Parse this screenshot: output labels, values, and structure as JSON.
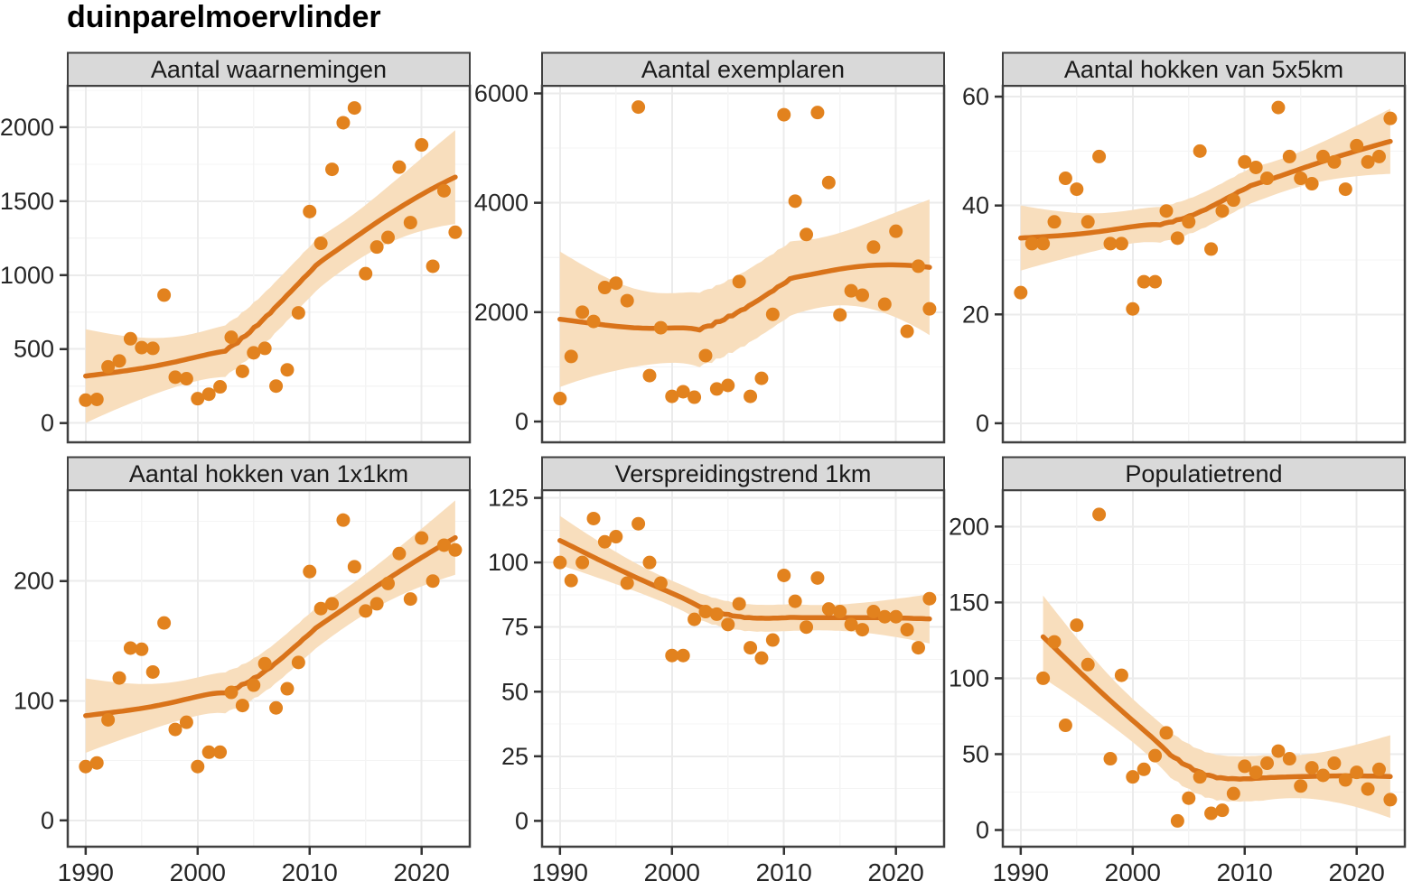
{
  "figure": {
    "title": "duinparelmoervlinder"
  },
  "colors": {
    "point": "#E2821E",
    "trend_line": "#D9731A",
    "confidence_band": "#F8DEBD",
    "strip_bg": "#D9D9D9",
    "strip_text": "#1A1A1A",
    "panel_border": "#404040",
    "grid_major": "#EBEBEB",
    "grid_minor": "#F4F4F4",
    "axis_text": "#262626",
    "tick_mark": "#333333"
  },
  "x_axis": {
    "tick_labels": [
      "1990",
      "2000",
      "2010",
      "2020"
    ]
  },
  "chart_data": [
    {
      "type": "scatter",
      "smoother": "loess",
      "band": "95% CI",
      "title": "Aantal waarnemingen",
      "x": [
        1990,
        1991,
        1992,
        1993,
        1994,
        1995,
        1996,
        1997,
        1998,
        1999,
        2000,
        2001,
        2002,
        2003,
        2004,
        2005,
        2006,
        2007,
        2008,
        2009,
        2010,
        2011,
        2012,
        2013,
        2014,
        2015,
        2016,
        2017,
        2018,
        2019,
        2020,
        2021,
        2022,
        2023
      ],
      "y": [
        155,
        160,
        380,
        420,
        570,
        510,
        505,
        865,
        310,
        300,
        165,
        195,
        245,
        580,
        350,
        475,
        505,
        250,
        360,
        745,
        1430,
        1215,
        1715,
        2030,
        2130,
        1010,
        1190,
        1255,
        1730,
        1355,
        1880,
        1060,
        1570,
        1290
      ],
      "y_ticks": [
        0,
        500,
        1000,
        1500,
        2000
      ],
      "ylim": [
        -130,
        2280
      ],
      "x_ticks": [
        1990,
        2000,
        2010,
        2020
      ],
      "xlim": [
        1988.4,
        2024.3
      ],
      "grid": true,
      "legend": false
    },
    {
      "type": "scatter",
      "smoother": "loess",
      "band": "95% CI",
      "title": "Aantal exemplaren",
      "x": [
        1990,
        1991,
        1992,
        1993,
        1994,
        1995,
        1996,
        1997,
        1998,
        1999,
        2000,
        2001,
        2002,
        2003,
        2004,
        2005,
        2006,
        2007,
        2008,
        2009,
        2010,
        2011,
        2012,
        2013,
        2014,
        2015,
        2016,
        2017,
        2018,
        2019,
        2020,
        2021,
        2022,
        2023
      ],
      "y": [
        420,
        1190,
        2000,
        1830,
        2450,
        2530,
        2210,
        5750,
        840,
        1715,
        460,
        545,
        445,
        1205,
        595,
        660,
        2560,
        460,
        790,
        1960,
        5610,
        4030,
        3420,
        5650,
        4370,
        1950,
        2390,
        2310,
        3190,
        2145,
        3480,
        1650,
        2840,
        2060
      ],
      "y_ticks": [
        0,
        2000,
        4000,
        6000
      ],
      "ylim": [
        -380,
        6140
      ],
      "x_ticks": [
        1990,
        2000,
        2010,
        2020
      ],
      "xlim": [
        1988.4,
        2024.3
      ],
      "grid": true,
      "legend": false
    },
    {
      "type": "scatter",
      "smoother": "loess",
      "band": "95% CI",
      "title": "Aantal hokken van 5x5km",
      "x": [
        1990,
        1991,
        1992,
        1993,
        1994,
        1995,
        1996,
        1997,
        1998,
        1999,
        2000,
        2001,
        2002,
        2003,
        2004,
        2005,
        2006,
        2007,
        2008,
        2009,
        2010,
        2011,
        2012,
        2013,
        2014,
        2015,
        2016,
        2017,
        2018,
        2019,
        2020,
        2021,
        2022,
        2023
      ],
      "y": [
        24,
        33,
        33,
        37,
        45,
        43,
        37,
        49,
        33,
        33,
        21,
        26,
        26,
        39,
        34,
        37,
        50,
        32,
        39,
        41,
        48,
        47,
        45,
        58,
        49,
        45,
        44,
        49,
        48,
        43,
        51,
        48,
        49,
        56
      ],
      "y_ticks": [
        0,
        20,
        40,
        60
      ],
      "ylim": [
        -3.5,
        62
      ],
      "x_ticks": [
        1990,
        2000,
        2010,
        2020
      ],
      "xlim": [
        1988.4,
        2024.3
      ],
      "grid": true,
      "legend": false
    },
    {
      "type": "scatter",
      "smoother": "loess",
      "band": "95% CI",
      "title": "Aantal hokken van 1x1km",
      "x": [
        1990,
        1991,
        1992,
        1993,
        1994,
        1995,
        1996,
        1997,
        1998,
        1999,
        2000,
        2001,
        2002,
        2003,
        2004,
        2005,
        2006,
        2007,
        2008,
        2009,
        2010,
        2011,
        2012,
        2013,
        2014,
        2015,
        2016,
        2017,
        2018,
        2019,
        2020,
        2021,
        2022,
        2023
      ],
      "y": [
        45,
        48,
        84,
        119,
        144,
        143,
        124,
        165,
        76,
        82,
        45,
        57,
        57,
        107,
        96,
        113,
        131,
        94,
        110,
        132,
        208,
        177,
        181,
        251,
        212,
        175,
        181,
        198,
        223,
        185,
        236,
        200,
        230,
        226
      ],
      "y_ticks": [
        0,
        100,
        200
      ],
      "ylim": [
        -22,
        276
      ],
      "x_ticks": [
        1990,
        2000,
        2010,
        2020
      ],
      "xlim": [
        1988.4,
        2024.3
      ],
      "grid": true,
      "legend": false
    },
    {
      "type": "scatter",
      "smoother": "loess",
      "band": "95% CI",
      "title": "Verspreidingstrend 1km",
      "x": [
        1990,
        1991,
        1992,
        1993,
        1994,
        1995,
        1996,
        1997,
        1998,
        1999,
        2000,
        2001,
        2002,
        2003,
        2004,
        2005,
        2006,
        2007,
        2008,
        2009,
        2010,
        2011,
        2012,
        2013,
        2014,
        2015,
        2016,
        2017,
        2018,
        2019,
        2020,
        2021,
        2022,
        2023
      ],
      "y": [
        100,
        93,
        100,
        117,
        108,
        110,
        92,
        115,
        100,
        92,
        64,
        64,
        78,
        81,
        80,
        76,
        84,
        67,
        63,
        70,
        95,
        85,
        75,
        94,
        82,
        81,
        76,
        74,
        81,
        79,
        79,
        74,
        67,
        86
      ],
      "y_ticks": [
        0,
        25,
        50,
        75,
        100,
        125
      ],
      "ylim": [
        -10,
        128
      ],
      "x_ticks": [
        1990,
        2000,
        2010,
        2020
      ],
      "xlim": [
        1988.4,
        2024.3
      ],
      "grid": true,
      "legend": false
    },
    {
      "type": "scatter",
      "smoother": "loess",
      "band": "95% CI",
      "title": "Populatietrend",
      "x": [
        1990,
        1991,
        1992,
        1993,
        1994,
        1995,
        1996,
        1997,
        1998,
        1999,
        2000,
        2001,
        2002,
        2003,
        2004,
        2005,
        2006,
        2007,
        2008,
        2009,
        2010,
        2011,
        2012,
        2013,
        2014,
        2015,
        2016,
        2017,
        2018,
        2019,
        2020,
        2021,
        2022,
        2023
      ],
      "y": [
        null,
        null,
        100,
        124,
        69,
        135,
        109,
        208,
        47,
        102,
        35,
        40,
        49,
        64,
        6,
        21,
        35,
        11,
        13,
        24,
        42,
        38,
        44,
        52,
        47,
        29,
        41,
        36,
        44,
        33,
        38,
        27,
        40,
        20
      ],
      "y_ticks": [
        0,
        50,
        100,
        150,
        200
      ],
      "ylim": [
        -11,
        224
      ],
      "x_ticks": [
        1990,
        2000,
        2010,
        2020
      ],
      "xlim": [
        1988.4,
        2024.3
      ],
      "grid": true,
      "legend": false
    }
  ]
}
